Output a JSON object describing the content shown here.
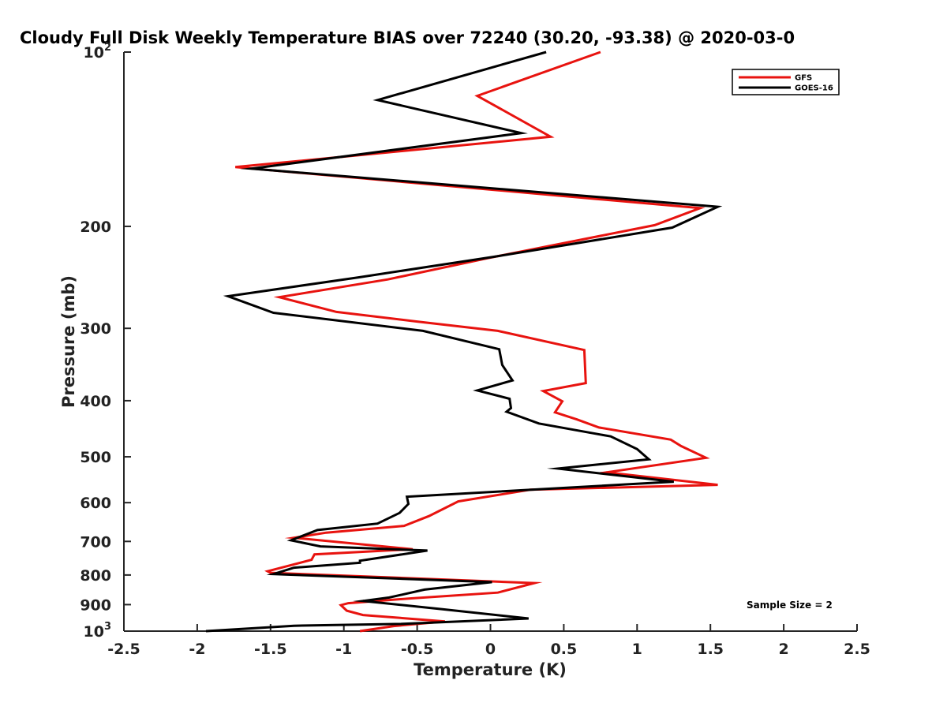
{
  "chart_data": {
    "type": "line",
    "title": "Cloudy Full Disk Weekly Temperature BIAS over 72240 (30.20, -93.38) @ 2020-03-0",
    "xlabel": "Temperature (K)",
    "ylabel": "Pressure (mb)",
    "xlim": [
      -2.5,
      2.5
    ],
    "ylim": [
      1000,
      100
    ],
    "yscale": "log",
    "y_reversed": true,
    "x_ticks": [
      "-2.5",
      "-2",
      "-1.5",
      "-1",
      "-0.5",
      "0",
      "0.5",
      "1",
      "1.5",
      "2",
      "2.5"
    ],
    "y_ticks": [
      {
        "value": 100,
        "base": "10",
        "exp": "2"
      },
      {
        "value": 200,
        "label": "200"
      },
      {
        "value": 300,
        "label": "300"
      },
      {
        "value": 400,
        "label": "400"
      },
      {
        "value": 500,
        "label": "500"
      },
      {
        "value": 600,
        "label": "600"
      },
      {
        "value": 700,
        "label": "700"
      },
      {
        "value": 800,
        "label": "800"
      },
      {
        "value": 900,
        "label": "900"
      },
      {
        "value": 1000,
        "base": "10",
        "exp": "3"
      }
    ],
    "grid": false,
    "legend_position": "top-right",
    "annotation": "Sample Size = 2",
    "series": [
      {
        "name": "GFS",
        "color": "#e8130f",
        "points": [
          [
            0.75,
            100
          ],
          [
            -0.09,
            119
          ],
          [
            0.41,
            140
          ],
          [
            -1.74,
            158
          ],
          [
            1.43,
            186
          ],
          [
            1.12,
            199
          ],
          [
            -0.02,
            227
          ],
          [
            -0.7,
            247
          ],
          [
            -1.44,
            265
          ],
          [
            -1.05,
            281
          ],
          [
            -0.5,
            292
          ],
          [
            0.05,
            303
          ],
          [
            0.64,
            327
          ],
          [
            0.65,
            373
          ],
          [
            0.36,
            385
          ],
          [
            0.49,
            401
          ],
          [
            0.44,
            419
          ],
          [
            0.59,
            431
          ],
          [
            0.74,
            445
          ],
          [
            1.23,
            467
          ],
          [
            1.3,
            479
          ],
          [
            1.47,
            502
          ],
          [
            0.79,
            532
          ],
          [
            1.55,
            559
          ],
          [
            0.27,
            570
          ],
          [
            -0.22,
            597
          ],
          [
            -0.42,
            633
          ],
          [
            -0.59,
            658
          ],
          [
            -1.12,
            676
          ],
          [
            -1.34,
            690
          ],
          [
            -0.53,
            722
          ],
          [
            -1.2,
            737
          ],
          [
            -1.22,
            753
          ],
          [
            -1.52,
            788
          ],
          [
            -1.5,
            793
          ],
          [
            0.3,
            826
          ],
          [
            0.05,
            858
          ],
          [
            -0.54,
            878
          ],
          [
            -0.97,
            895
          ],
          [
            -1.02,
            902
          ],
          [
            -0.98,
            922
          ],
          [
            -0.87,
            938
          ],
          [
            -0.31,
            962
          ],
          [
            -0.5,
            972
          ],
          [
            -0.66,
            980
          ],
          [
            -0.89,
            1000
          ]
        ]
      },
      {
        "name": "GOES-16",
        "color": "#000000",
        "points": [
          [
            0.38,
            100
          ],
          [
            -0.77,
            121
          ],
          [
            0.21,
            138
          ],
          [
            -1.63,
            159
          ],
          [
            1.55,
            185
          ],
          [
            1.24,
            201
          ],
          [
            0.01,
            226
          ],
          [
            -0.9,
            245
          ],
          [
            -1.79,
            264
          ],
          [
            -1.48,
            282
          ],
          [
            -0.46,
            303
          ],
          [
            0.06,
            326
          ],
          [
            0.08,
            347
          ],
          [
            0.15,
            369
          ],
          [
            -0.09,
            384
          ],
          [
            0.13,
            397
          ],
          [
            0.14,
            412
          ],
          [
            0.11,
            418
          ],
          [
            0.33,
            438
          ],
          [
            0.82,
            461
          ],
          [
            1.0,
            485
          ],
          [
            1.08,
            505
          ],
          [
            0.46,
            524
          ],
          [
            1.25,
            552
          ],
          [
            -0.57,
            586
          ],
          [
            -0.56,
            603
          ],
          [
            -0.62,
            625
          ],
          [
            -0.77,
            652
          ],
          [
            -1.18,
            669
          ],
          [
            -1.36,
            697
          ],
          [
            -1.16,
            714
          ],
          [
            -0.43,
            726
          ],
          [
            -0.89,
            756
          ],
          [
            -0.89,
            762
          ],
          [
            -1.34,
            777
          ],
          [
            -1.48,
            797
          ],
          [
            0.01,
            823
          ],
          [
            -0.45,
            848
          ],
          [
            -0.69,
            875
          ],
          [
            -0.87,
            887
          ],
          [
            -0.34,
            916
          ],
          [
            0.26,
            951
          ],
          [
            -0.61,
            972
          ],
          [
            -1.34,
            979
          ],
          [
            -1.94,
            1000
          ]
        ]
      }
    ]
  }
}
